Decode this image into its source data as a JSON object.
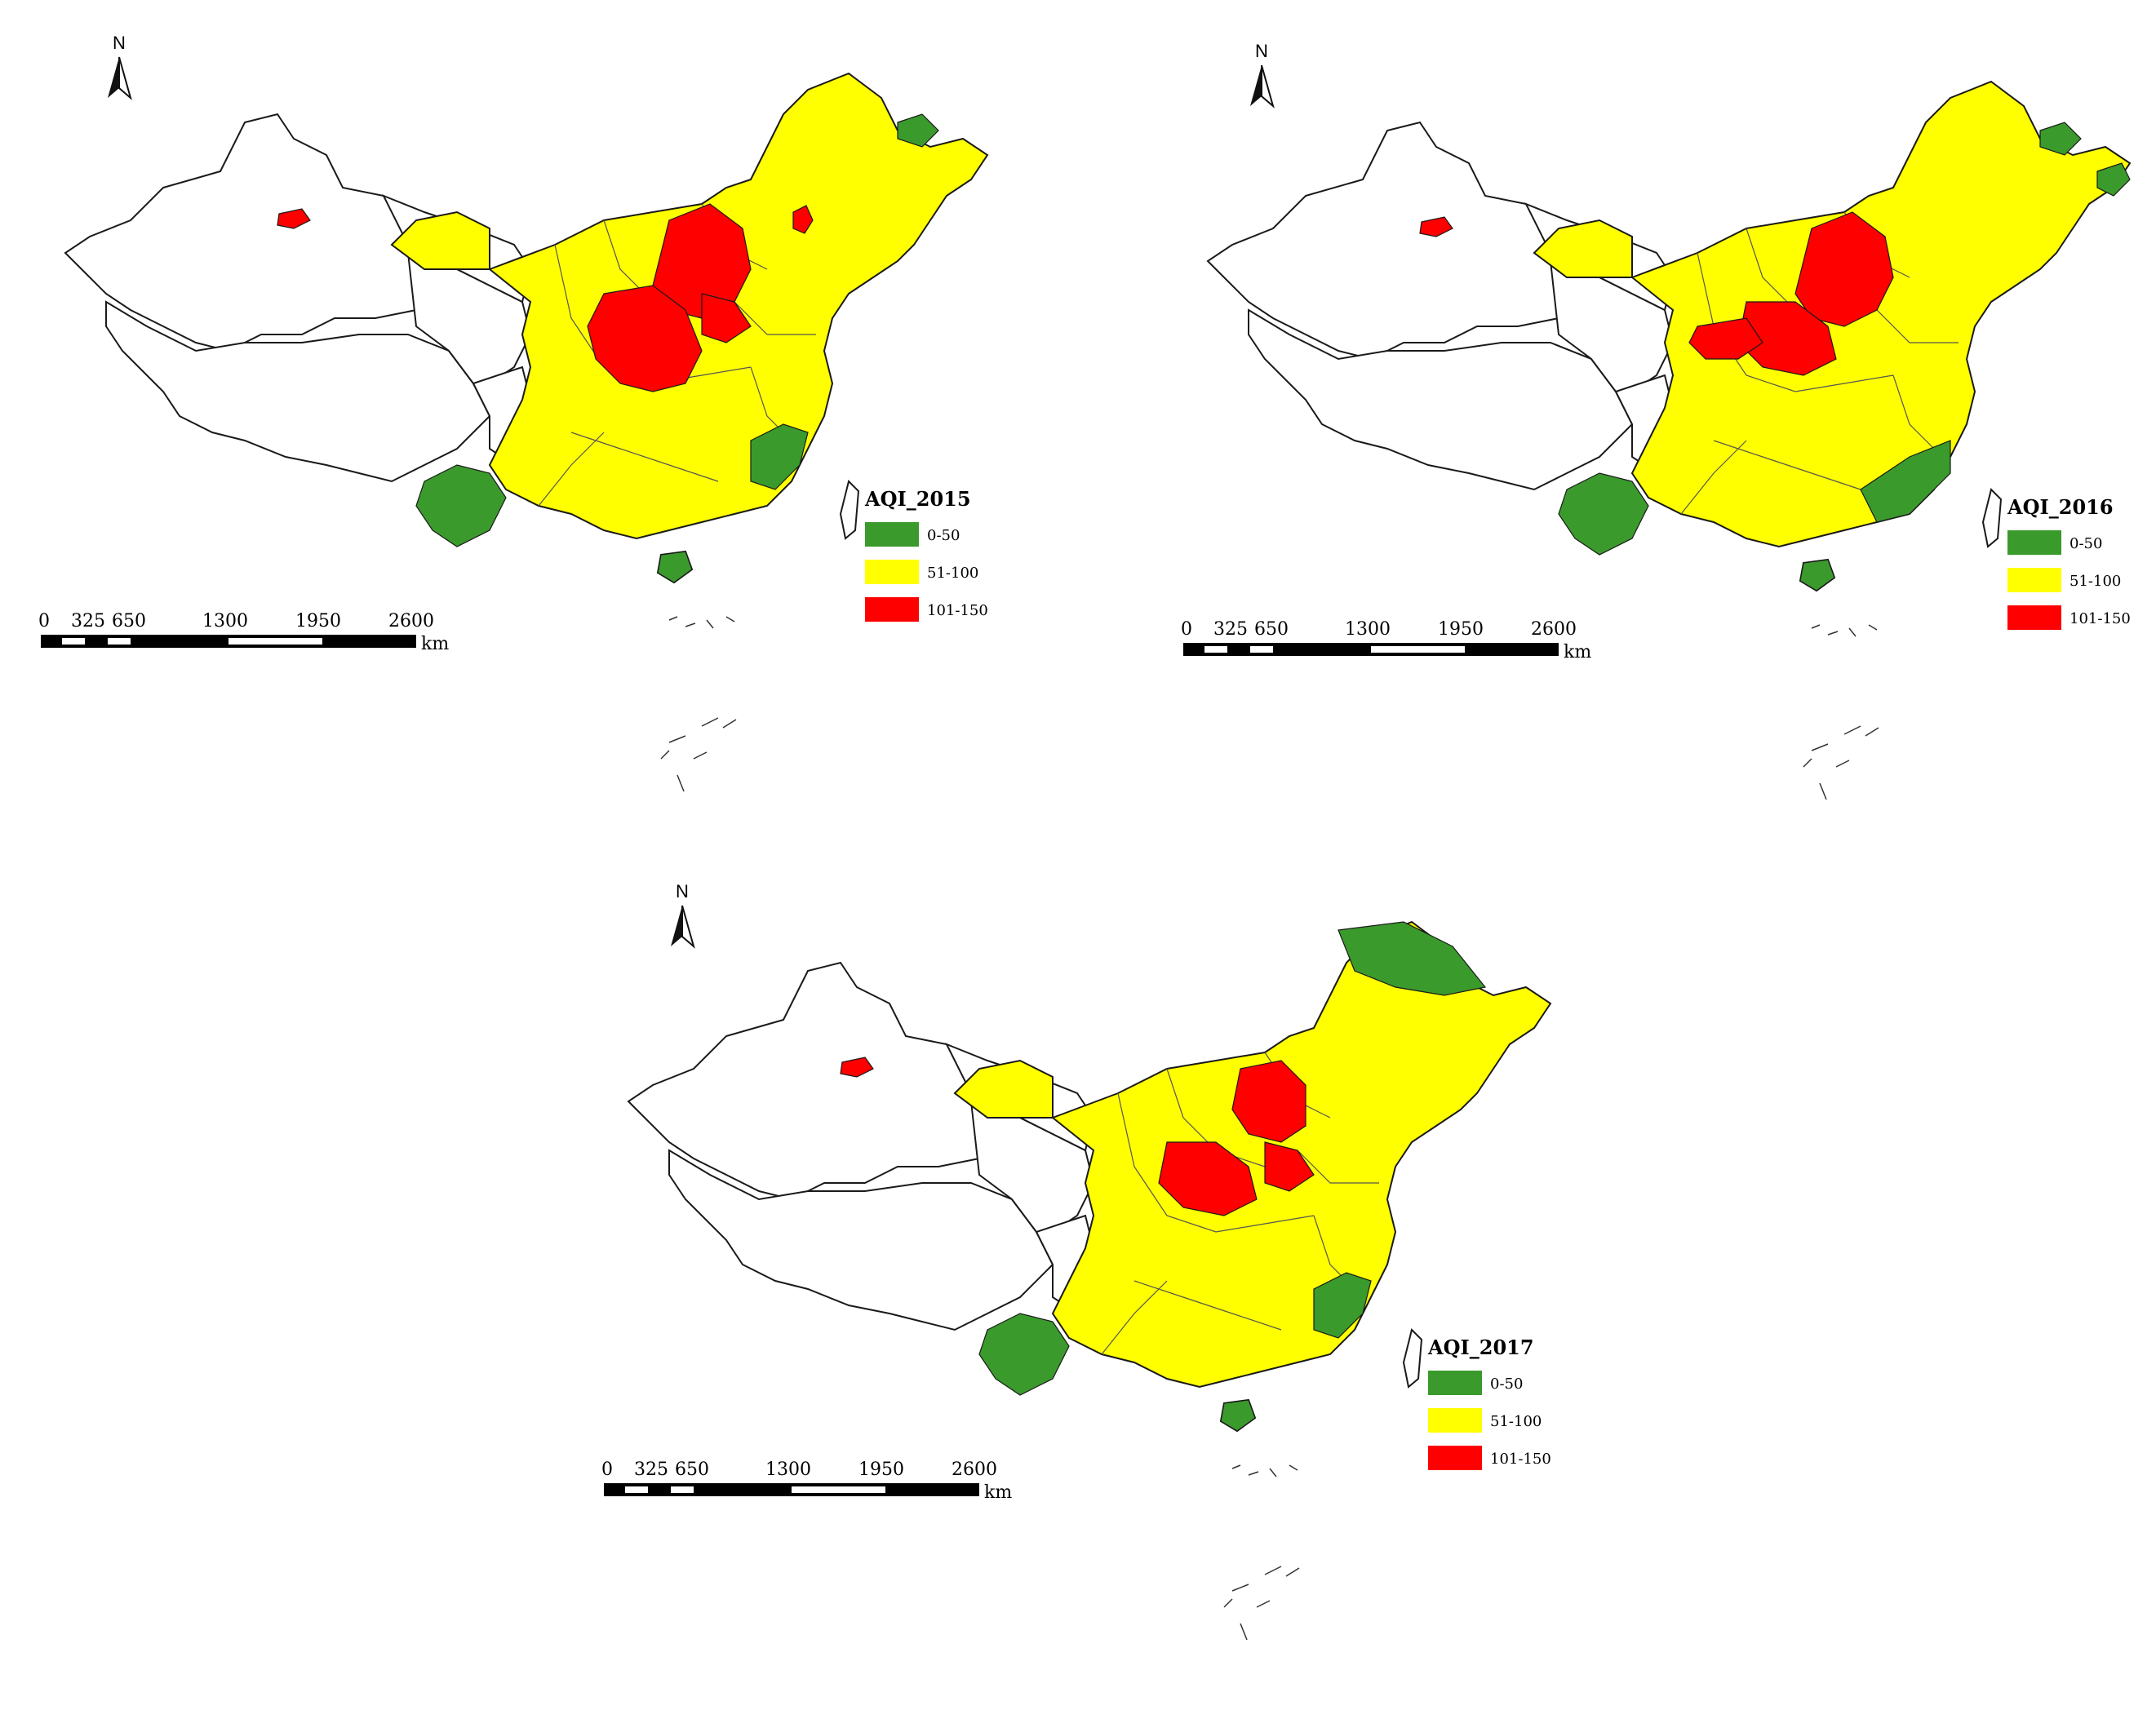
{
  "maps": [
    {
      "title": "AQI_2015",
      "north_label": "N",
      "highlights": {
        "red": [
          "beijing-tianjin-hebei",
          "henan",
          "shandong-west",
          "xinjiang-urumqi",
          "liaoning-shenyang"
        ],
        "green": [
          "yunnan",
          "fujian",
          "hainan",
          "heilongjiang-east"
        ]
      }
    },
    {
      "title": "AQI_2016",
      "north_label": "N",
      "highlights": {
        "red": [
          "beijing-tianjin-hebei",
          "henan-north",
          "shanxi-central",
          "xinjiang-urumqi"
        ],
        "green": [
          "yunnan",
          "guangdong-fujian",
          "hainan",
          "heilongjiang-east",
          "jilin-east"
        ]
      }
    },
    {
      "title": "AQI_2017",
      "north_label": "N",
      "highlights": {
        "red": [
          "hebei",
          "henan-north",
          "shandong-west",
          "xinjiang-urumqi"
        ],
        "green": [
          "heilongjiang-north",
          "yunnan",
          "fujian",
          "hainan"
        ]
      }
    }
  ],
  "legend": [
    {
      "label": "0-50",
      "color": "#3a9a2c"
    },
    {
      "label": "51-100",
      "color": "#ffff00"
    },
    {
      "label": "101-150",
      "color": "#ff0000"
    }
  ],
  "scale": {
    "ticks": [
      "0",
      "325",
      "650",
      "1300",
      "1950",
      "2600"
    ],
    "unit": "km"
  },
  "colors": {
    "outline": "#1a1a1a",
    "nodata": "#ffffff",
    "yellow": "#ffff00",
    "red": "#ff0000",
    "green": "#3a9a2c"
  }
}
